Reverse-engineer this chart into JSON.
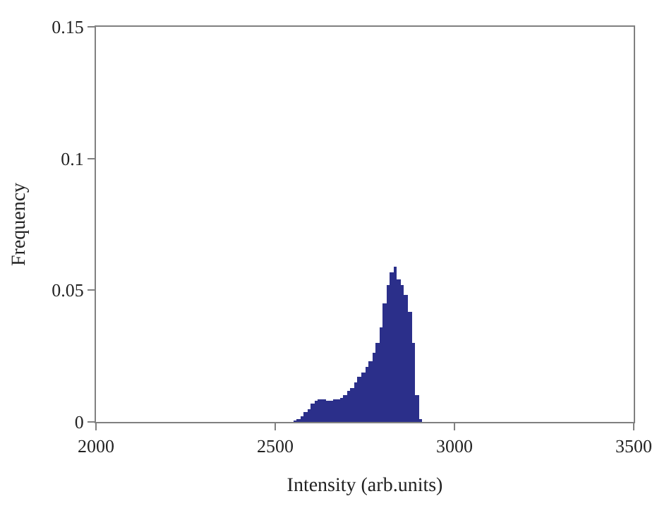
{
  "chart_data": {
    "type": "histogram",
    "xlabel": "Intensity (arb.units)",
    "ylabel": "Frequency",
    "bins": [
      2550,
      2560,
      2570,
      2580,
      2590,
      2600,
      2610,
      2620,
      2630,
      2640,
      2650,
      2660,
      2670,
      2680,
      2690,
      2700,
      2710,
      2720,
      2730,
      2740,
      2750,
      2760,
      2770,
      2780,
      2790,
      2800,
      2810,
      2820,
      2830,
      2840,
      2850,
      2860,
      2870,
      2880,
      2890,
      2900,
      2910
    ],
    "values": [
      0.0005,
      0.001,
      0.002,
      0.004,
      0.005,
      0.007,
      0.008,
      0.0087,
      0.0085,
      0.0082,
      0.0082,
      0.0085,
      0.0088,
      0.009,
      0.01,
      0.012,
      0.013,
      0.015,
      0.017,
      0.019,
      0.021,
      0.023,
      0.026,
      0.03,
      0.036,
      0.045,
      0.052,
      0.057,
      0.059,
      0.054,
      0.052,
      0.048,
      0.042,
      0.03,
      0.01,
      0.001
    ],
    "color": "#2b2f8a",
    "xlim": [
      2000,
      3500
    ],
    "xticks": [
      2000,
      2500,
      3000,
      3500
    ],
    "ylim": [
      0,
      0.15
    ],
    "yticks": [
      0,
      0.05,
      0.1,
      0.15
    ]
  }
}
